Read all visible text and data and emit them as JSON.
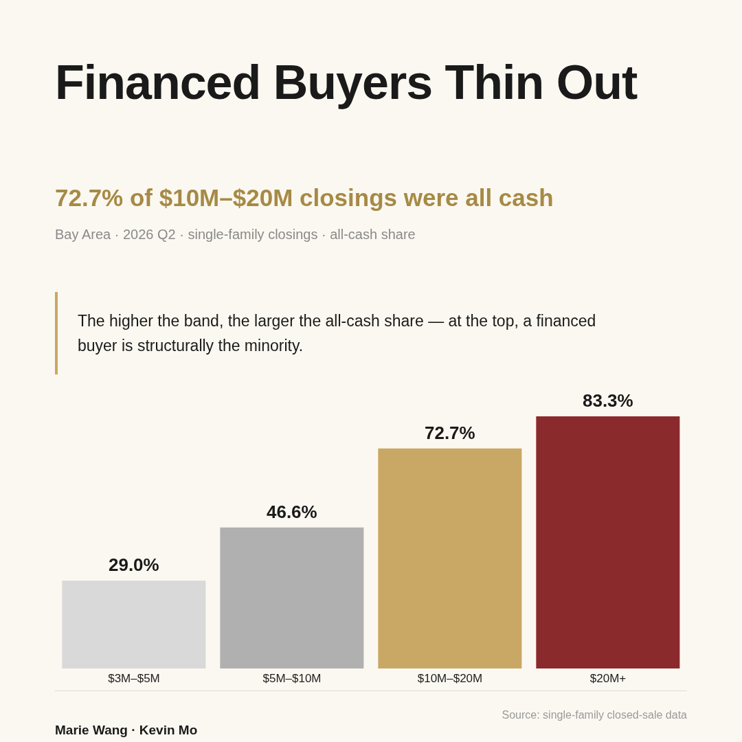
{
  "chart_data": {
    "type": "bar",
    "title": "Financed Buyers Thin Out",
    "subtitle": "72.7% of $10M–$20M closings were all cash",
    "annotations": [
      "Bay Area · 2026 Q2 · single-family closings · all-cash share",
      "The higher the band, the larger the all-cash share — at the top, a financed buyer is structurally the minority.",
      "Source: single-family closed-sale data",
      "Marie Wang · Kevin Mo"
    ],
    "categories": [
      "$3M–$5M",
      "$5M–$10M",
      "$10M–$20M",
      "$20M+"
    ],
    "values": [
      29.0,
      46.6,
      72.7,
      83.3
    ],
    "colors": [
      "#d9d9d9",
      "#b0b0b0",
      "#c9a765",
      "#8b2a2c"
    ],
    "value_labels": [
      "29.0%",
      "46.6%",
      "72.7%",
      "83.3%"
    ],
    "grid": false,
    "legend": false
  }
}
